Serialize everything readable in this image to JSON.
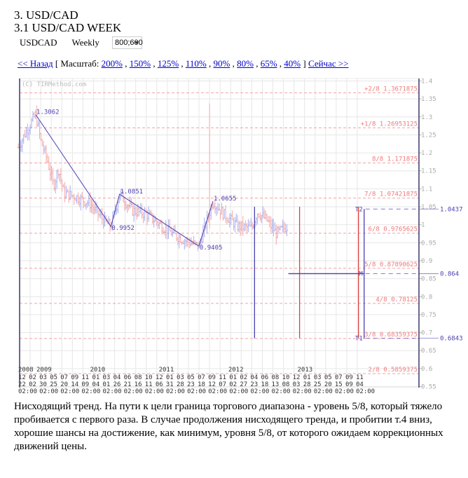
{
  "header": {
    "title": "3. USD/CAD",
    "subtitle": "3.1 USD/CAD WEEK"
  },
  "controls": {
    "symbol": "USDCAD",
    "period": "Weekly",
    "size_select": "800;600"
  },
  "nav": {
    "back": "<< Назад",
    "scale_open": "[ Масштаб:",
    "scales": [
      "200%",
      "150%",
      "125%",
      "110%",
      "90%",
      "80%",
      "65%",
      "40%"
    ],
    "scale_close": "]",
    "now": "Сейчас >>"
  },
  "description": "Нисходящий тренд. На пути к цели граница торгового диапазона - уровень 5/8, который тяжело пробивается с первого раза. В случае продолжения нисходящего тренда, и пробитии т.4 вниз, хорошие шансы на достижение, как минимум, уровня 5/8, от которого ожидаем коррекционных движений цены.",
  "chart_data": {
    "type": "ohlc",
    "watermark": "(C) TIRMethod.com",
    "ylim": [
      0.55,
      1.4
    ],
    "yticks": [
      "1.4",
      "1.35",
      "1.3",
      "1.25",
      "1.2",
      "1.15",
      "1.1",
      "1.05",
      "1",
      "0.95",
      "0.9",
      "0.85",
      "0.8",
      "0.75",
      "0.7",
      "0.65",
      "0.6",
      "0.55"
    ],
    "grid": true,
    "colors": {
      "up": "#a6aef0",
      "down": "#f5a8a8",
      "levels": "#f07a7a",
      "markup": "#4a3fb0",
      "axis": "#aaaaaa"
    },
    "x_years": [
      {
        "label": "2008",
        "date": "2008-12-22"
      },
      {
        "label": "2009",
        "date": "2009-01-25"
      },
      {
        "label": "2010",
        "date": "2010-01-04"
      },
      {
        "label": "2011",
        "date": "2011-01-01"
      },
      {
        "label": "2012",
        "date": "2012-01-02"
      },
      {
        "label": "2013",
        "date": "2012-12-31"
      }
    ],
    "x_months": [
      "12",
      "02",
      "03",
      "05",
      "07",
      "09",
      "11",
      "01",
      "03",
      "04",
      "06",
      "08",
      "10",
      "12",
      "01",
      "03",
      "05",
      "07",
      "09",
      "11",
      "01",
      "02",
      "04",
      "06",
      "08",
      "10",
      "12",
      "01",
      "03",
      "05",
      "07",
      "09",
      "11"
    ],
    "x_days": [
      "22",
      "02",
      "30",
      "25",
      "20",
      "14",
      "09",
      "04",
      "01",
      "26",
      "21",
      "16",
      "11",
      "06",
      "31",
      "28",
      "23",
      "18",
      "12",
      "07",
      "02",
      "27",
      "23",
      "18",
      "13",
      "08",
      "03",
      "28",
      "25",
      "20",
      "15",
      "09",
      "04"
    ],
    "x_time": "02:00",
    "x_range": [
      "2008-12-22",
      "2013-11-04"
    ],
    "price_path": [
      [
        "2008-12-15",
        1.215
      ],
      [
        "2009-01-28",
        1.263
      ],
      [
        "2009-03-17",
        1.3062
      ],
      [
        "2009-04-12",
        1.234
      ],
      [
        "2009-05-19",
        1.176
      ],
      [
        "2009-06-18",
        1.108
      ],
      [
        "2009-07-14",
        1.156
      ],
      [
        "2009-08-12",
        1.088
      ],
      [
        "2009-10-14",
        1.078
      ],
      [
        "2009-12-27",
        1.059
      ],
      [
        "2010-03-11",
        1.01
      ],
      [
        "2010-04-17",
        0.9952
      ],
      [
        "2010-06-01",
        1.0851
      ],
      [
        "2010-08-07",
        1.04
      ],
      [
        "2010-10-20",
        1.03
      ],
      [
        "2011-01-02",
        1.0
      ],
      [
        "2011-03-17",
        0.971
      ],
      [
        "2011-05-30",
        0.952
      ],
      [
        "2011-07-24",
        0.9405
      ],
      [
        "2011-10-06",
        1.0655
      ],
      [
        "2011-12-01",
        1.03
      ],
      [
        "2012-02-13",
        0.996
      ],
      [
        "2012-04-27",
        0.99
      ],
      [
        "2012-05-27",
        1.035
      ],
      [
        "2012-07-10",
        1.016
      ],
      [
        "2012-09-04",
        0.975
      ],
      [
        "2012-10-29",
        0.996
      ]
    ],
    "spike": {
      "date": "2011-09-18",
      "high": 1.3376,
      "low": 0.99
    },
    "levels": [
      {
        "label": "+2/8 1.3671875",
        "value": 1.3671875
      },
      {
        "label": "+1/8 1.26953125",
        "value": 1.26953125
      },
      {
        "label": "8/8 1.171875",
        "value": 1.171875
      },
      {
        "label": "7/8 1.07421875",
        "value": 1.07421875
      },
      {
        "label": "6/8 0.9765625",
        "value": 0.9765625
      },
      {
        "label": "5/8 0.87890625",
        "value": 0.87890625
      },
      {
        "label": "4/8 0.78125",
        "value": 0.78125
      },
      {
        "label": "3/8 0.68359375",
        "value": 0.68359375
      },
      {
        "label": "2/8 0.5859375",
        "value": 0.5859375
      }
    ],
    "pivots": [
      {
        "label": "1.3062",
        "date": "2009-03-17",
        "value": 1.3062
      },
      {
        "label": "0.9952",
        "date": "2010-04-17",
        "value": 0.9952
      },
      {
        "label": "1.0851",
        "date": "2010-06-01",
        "value": 1.0851
      },
      {
        "label": "0.9405",
        "date": "2011-07-24",
        "value": 0.9405
      },
      {
        "label": "1.0655",
        "date": "2011-10-06",
        "value": 1.0655
      }
    ],
    "targets": [
      {
        "name": "T2",
        "value": 1.0437,
        "label": "1.0437"
      },
      {
        "name": "M",
        "value": 0.864,
        "label": "0.864"
      },
      {
        "name": "T1",
        "value": 0.6843,
        "label": "0.6843"
      }
    ],
    "time_lines": [
      {
        "date": "2012-05-12",
        "color": "#4a3fb0",
        "from": 1.05,
        "to": 0.6843
      },
      {
        "date": "2013-01-04",
        "color": "#e04040",
        "from": 1.05,
        "to": 0.6843
      },
      {
        "date": "2013-11-10",
        "color": "#e04040",
        "from": 1.05,
        "to": 0.6843
      },
      {
        "date": "2013-12-10",
        "color": "#4a3fb0",
        "from": 1.0437,
        "to": 0.6843
      }
    ],
    "mid_line": {
      "from": "2012-11-06",
      "to": "2013-12-10",
      "value": 0.864
    }
  }
}
